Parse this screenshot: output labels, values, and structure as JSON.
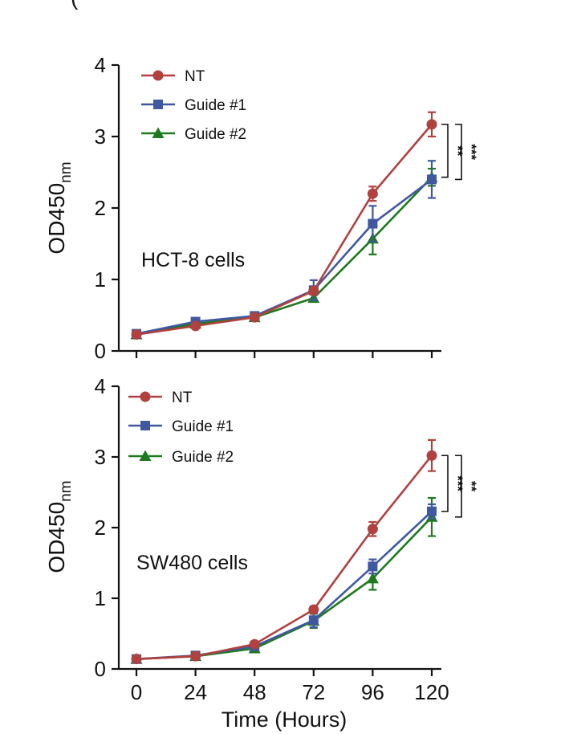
{
  "header_fragment": "(",
  "chart_data": [
    {
      "type": "line",
      "panel_label": "HCT-8 cells",
      "ylabel_main": "OD450",
      "ylabel_sub": "nm",
      "xlabel": "",
      "ylim": [
        0,
        4
      ],
      "yticks": [
        "0",
        "1",
        "2",
        "3",
        "4"
      ],
      "x": [
        0,
        24,
        48,
        72,
        96,
        120
      ],
      "xticks": [],
      "series": [
        {
          "name": "NT",
          "color": "#b0413e",
          "marker": "circle",
          "values": [
            0.23,
            0.35,
            0.47,
            0.84,
            2.2,
            3.17
          ],
          "errors": [
            0.03,
            0.03,
            0.03,
            0.05,
            0.1,
            0.17
          ]
        },
        {
          "name": "Guide #1",
          "color": "#3f58a0",
          "marker": "square",
          "values": [
            0.24,
            0.41,
            0.49,
            0.85,
            1.78,
            2.4
          ],
          "errors": [
            0.03,
            0.03,
            0.03,
            0.14,
            0.25,
            0.26
          ]
        },
        {
          "name": "Guide #2",
          "color": "#1e7a1e",
          "marker": "triangle",
          "values": [
            0.23,
            0.38,
            0.47,
            0.74,
            1.57,
            2.43
          ],
          "errors": [
            0.03,
            0.03,
            0.03,
            0.05,
            0.22,
            0.12
          ]
        }
      ],
      "significance": [
        {
          "label": "**",
          "from": 3.17,
          "to": 2.43
        },
        {
          "label": "***",
          "from": 3.17,
          "to": 2.4
        }
      ]
    },
    {
      "type": "line",
      "panel_label": "SW480 cells",
      "ylabel_main": "OD450",
      "ylabel_sub": "nm",
      "xlabel": "Time (Hours)",
      "ylim": [
        0,
        4
      ],
      "yticks": [
        "0",
        "1",
        "2",
        "3",
        "4"
      ],
      "x": [
        0,
        24,
        48,
        72,
        96,
        120
      ],
      "xticks": [
        "0",
        "24",
        "48",
        "72",
        "96",
        "120"
      ],
      "series": [
        {
          "name": "NT",
          "color": "#b0413e",
          "marker": "circle",
          "values": [
            0.14,
            0.18,
            0.35,
            0.84,
            1.98,
            3.02
          ],
          "errors": [
            0.03,
            0.03,
            0.03,
            0.04,
            0.1,
            0.22
          ]
        },
        {
          "name": "Guide #1",
          "color": "#3f58a0",
          "marker": "square",
          "values": [
            0.14,
            0.19,
            0.32,
            0.69,
            1.45,
            2.23
          ],
          "errors": [
            0.03,
            0.03,
            0.03,
            0.1,
            0.1,
            0.1
          ]
        },
        {
          "name": "Guide #2",
          "color": "#1e7a1e",
          "marker": "triangle",
          "values": [
            0.14,
            0.18,
            0.29,
            0.68,
            1.28,
            2.15
          ],
          "errors": [
            0.03,
            0.03,
            0.03,
            0.1,
            0.16,
            0.27
          ]
        }
      ],
      "significance": [
        {
          "label": "***",
          "from": 3.02,
          "to": 2.23
        },
        {
          "label": "**",
          "from": 3.02,
          "to": 2.15
        }
      ]
    }
  ]
}
